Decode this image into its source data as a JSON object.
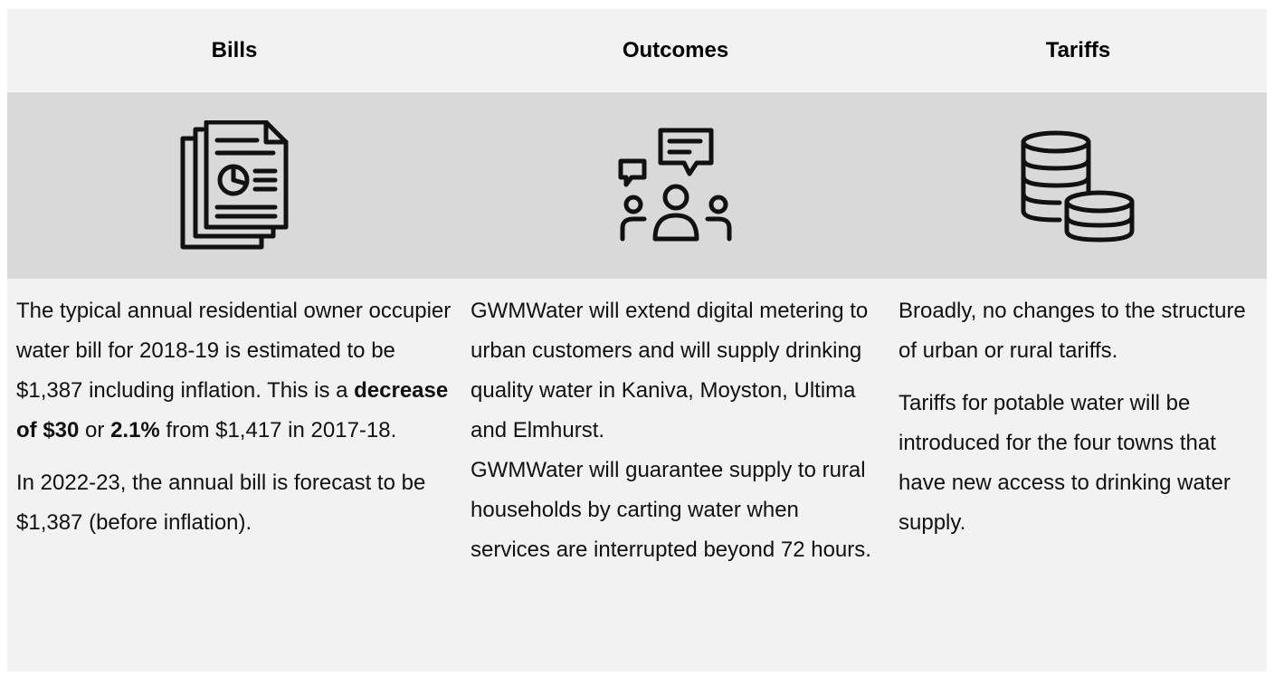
{
  "columns": [
    {
      "header": "Bills",
      "paragraphs": [
        [
          {
            "text": "The typical annual residential owner occupier water bill for 2018-19 is estimated to be $1,387 including inflation. This is a ",
            "bold": false
          },
          {
            "text": "decrease of $30",
            "bold": true
          },
          {
            "text": " or ",
            "bold": false
          },
          {
            "text": "2.1%",
            "bold": true
          },
          {
            "text": " from $1,417 in 2017-18.",
            "bold": false
          }
        ],
        [
          {
            "text": "In 2022-23, the annual bill is forecast to be $1,387 (before inflation).",
            "bold": false
          }
        ]
      ]
    },
    {
      "header": "Outcomes",
      "paragraphs": [
        [
          {
            "text": "GWMWater will extend digital metering to urban customers and will supply drinking quality water in Kaniva, Moyston, Ultima and Elmhurst.",
            "bold": false
          }
        ],
        [
          {
            "text": "GWMWater will guarantee supply to rural households by carting water when services are interrupted beyond 72 hours.",
            "bold": false
          }
        ]
      ]
    },
    {
      "header": "Tariffs",
      "paragraphs": [
        [
          {
            "text": "Broadly, no changes to the structure of urban or rural tariffs.",
            "bold": false
          }
        ],
        [
          {
            "text": "Tariffs for potable water will be introduced for the four towns that have new access to drinking water supply.",
            "bold": false
          }
        ]
      ]
    }
  ]
}
